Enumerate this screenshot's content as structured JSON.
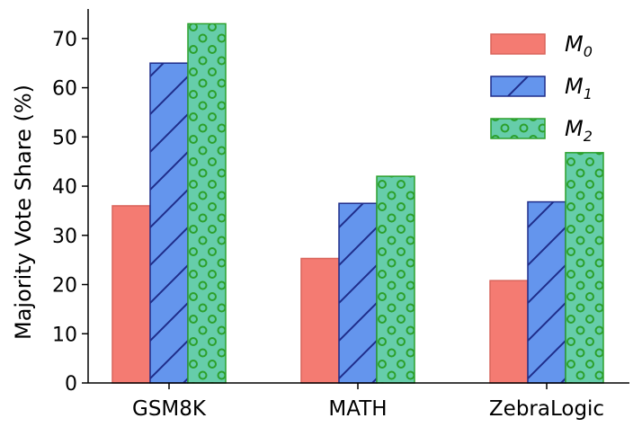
{
  "chart_data": {
    "type": "bar",
    "title": "",
    "xlabel": "",
    "ylabel": "Majority Vote Share (%)",
    "categories": [
      "GSM8K",
      "MATH",
      "ZebraLogic"
    ],
    "ylim": [
      0,
      76
    ],
    "yticks": [
      0,
      10,
      20,
      30,
      40,
      50,
      60,
      70
    ],
    "grid": false,
    "legend_position": "top-right",
    "series": [
      {
        "name": "M",
        "subscript": "0",
        "values": [
          36,
          25.3,
          20.8
        ],
        "color": "#f47b72",
        "edge": "#d9645b",
        "pattern": "solid"
      },
      {
        "name": "M",
        "subscript": "1",
        "values": [
          65,
          36.5,
          36.8
        ],
        "color": "#6495ed",
        "edge": "#1f2d8a",
        "pattern": "hatch"
      },
      {
        "name": "M",
        "subscript": "2",
        "values": [
          73,
          42,
          46.8
        ],
        "color": "#66cdaa",
        "edge": "#2ca02c",
        "pattern": "circles"
      }
    ]
  }
}
